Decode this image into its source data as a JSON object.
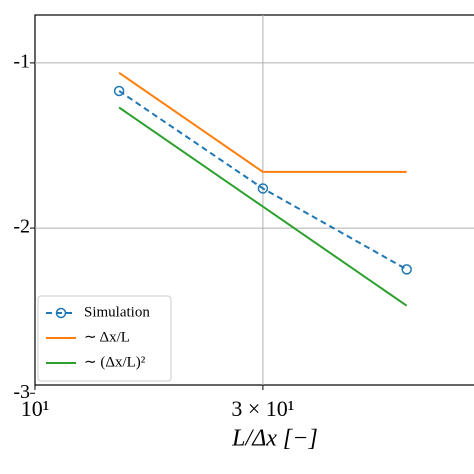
{
  "chart_data": {
    "type": "line",
    "x_label": "L/Δx [−]",
    "x": [
      15,
      30,
      60
    ],
    "series": [
      {
        "name": "Simulation",
        "color": "#1f77b4",
        "values": [
          -1.17,
          -1.76,
          -2.25
        ],
        "style": "dashed",
        "marker": "open-circle"
      },
      {
        "name": "∼ Δx/L",
        "color": "#ff7f0e",
        "values": [
          -1.06,
          -1.66,
          -1.66
        ]
      },
      {
        "name": "∼ (Δx/L)²",
        "color": "#2ca02c",
        "values": [
          -1.27,
          -1.87,
          -2.47
        ]
      }
    ],
    "xscale": "log",
    "xlim": [
      10,
      83
    ],
    "xticks": [
      {
        "value": 10,
        "label": "10¹"
      },
      {
        "value": 30,
        "label": "3 × 10¹"
      }
    ],
    "ylim": [
      -2.95,
      -0.71
    ],
    "yticks": [
      -1,
      -2,
      -3
    ],
    "grid": true,
    "legend": "lower left"
  }
}
